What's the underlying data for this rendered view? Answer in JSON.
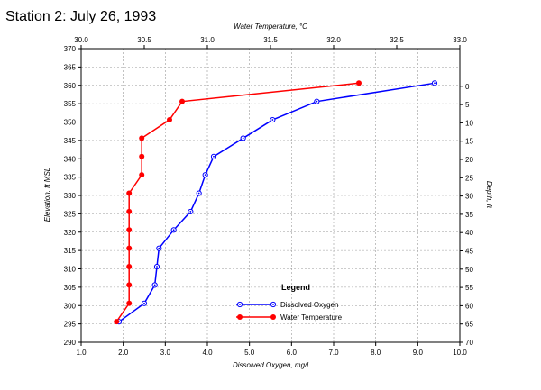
{
  "chart_data": {
    "type": "line",
    "title": "Station 2: July 26, 1993",
    "axes": {
      "bottom": {
        "label": "Dissolved Oxygen, mg/l",
        "min": 1.0,
        "max": 10.0,
        "step": 1.0,
        "ticks": [
          "1.0",
          "2.0",
          "3.0",
          "4.0",
          "5.0",
          "6.0",
          "7.0",
          "8.0",
          "9.0",
          "10.0"
        ]
      },
      "top": {
        "label": "Water Temperature, °C",
        "min": 30.0,
        "max": 33.0,
        "step": 0.5,
        "ticks": [
          "30.0",
          "30.5",
          "31.0",
          "31.5",
          "32.0",
          "32.5",
          "33.0"
        ]
      },
      "left": {
        "label": "Elevation, ft MSL",
        "min": 290,
        "max": 370,
        "step": 5,
        "ticks": [
          "290",
          "295",
          "300",
          "305",
          "310",
          "315",
          "320",
          "325",
          "330",
          "335",
          "340",
          "345",
          "350",
          "355",
          "360",
          "365",
          "370"
        ]
      },
      "right": {
        "label": "Depth, ft",
        "min": -10.3,
        "max": 70.0,
        "step": 5,
        "ticks": [
          "0",
          "5",
          "10",
          "15",
          "20",
          "25",
          "30",
          "35",
          "40",
          "45",
          "50",
          "55",
          "60",
          "65",
          "70"
        ]
      }
    },
    "grid": true,
    "legend": {
      "title": "Legend",
      "placement": "bottom-center",
      "entries": [
        {
          "name": "Dissolved Oxygen",
          "color": "#0000ff",
          "marker": "open-circle"
        },
        {
          "name": "Water Temperature",
          "color": "#ff0000",
          "marker": "filled-circle"
        }
      ]
    },
    "series": [
      {
        "name": "Dissolved Oxygen",
        "x_axis": "bottom",
        "color": "#0000ff",
        "x": [
          9.4,
          6.6,
          5.55,
          4.85,
          4.15,
          3.95,
          3.8,
          3.6,
          3.2,
          2.85,
          2.8,
          2.75,
          2.5,
          1.9
        ],
        "y": [
          360.6,
          355.6,
          350.6,
          345.6,
          340.6,
          335.6,
          330.6,
          325.6,
          320.6,
          315.6,
          310.6,
          305.6,
          300.6,
          295.6
        ]
      },
      {
        "name": "Water Temperature",
        "x_axis": "top",
        "color": "#ff0000",
        "x": [
          32.2,
          30.8,
          30.7,
          30.48,
          30.48,
          30.48,
          30.38,
          30.38,
          30.38,
          30.38,
          30.38,
          30.38,
          30.38,
          30.28
        ],
        "y": [
          360.6,
          355.6,
          350.6,
          345.6,
          340.6,
          335.6,
          330.6,
          325.6,
          320.6,
          315.6,
          310.6,
          305.6,
          300.6,
          295.6
        ]
      }
    ]
  }
}
